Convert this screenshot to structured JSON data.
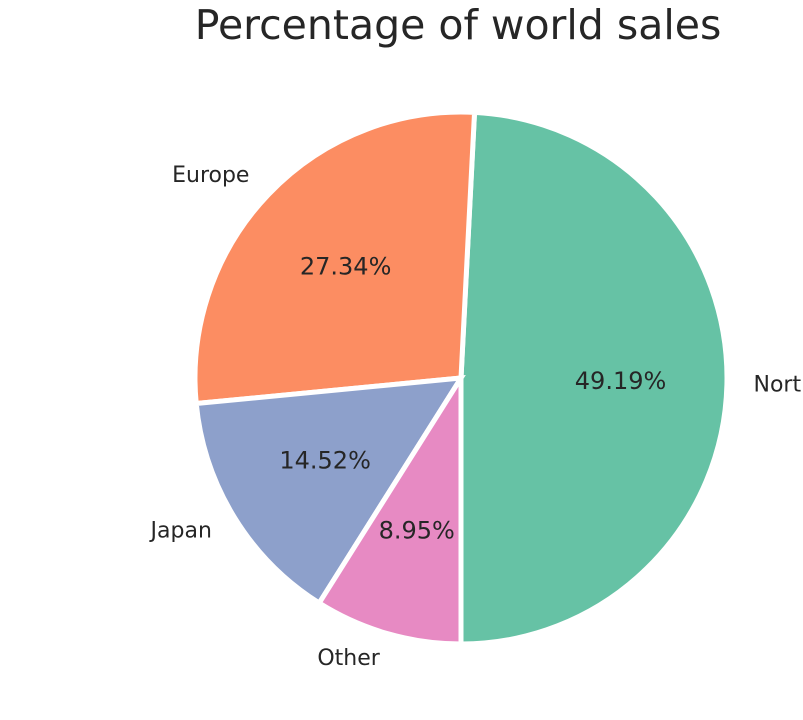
{
  "chart_data": {
    "type": "pie",
    "title": "Percentage of world sales",
    "categories": [
      "North America",
      "Europe",
      "Japan",
      "Other"
    ],
    "values": [
      49.19,
      27.34,
      14.52,
      8.95
    ],
    "percent_labels": [
      "49.19%",
      "27.34%",
      "14.52%",
      "8.95%"
    ],
    "colors": [
      "#66c2a5",
      "#fc8d62",
      "#8da0cb",
      "#e78ac3"
    ],
    "start_angle_deg": 270,
    "direction": "counterclockwise",
    "legend": "none"
  }
}
